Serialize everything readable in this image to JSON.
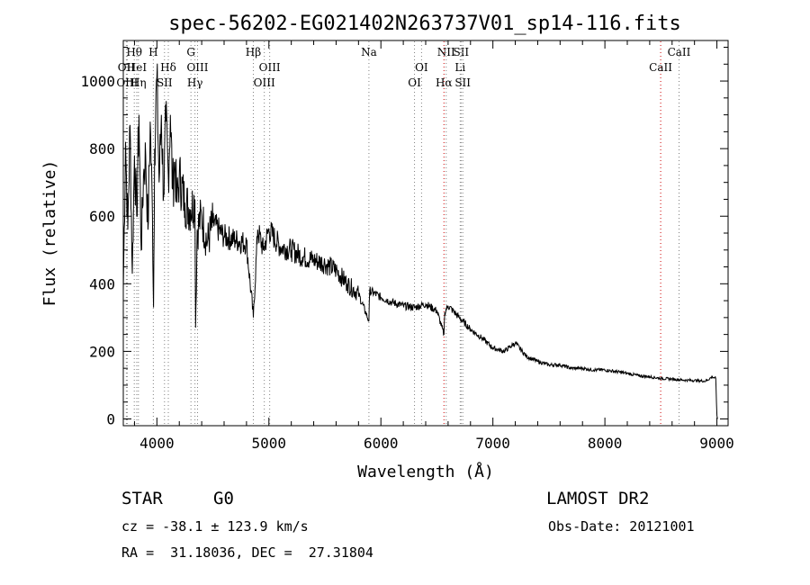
{
  "chart_data": {
    "type": "line",
    "title": "spec-56202-EG021402N263737V01_sp14-116.fits",
    "xlabel": "Wavelength (Å)",
    "ylabel": "Flux (relative)",
    "xlim": [
      3700,
      9100
    ],
    "ylim": [
      -20,
      1120
    ],
    "xticks": [
      4000,
      5000,
      6000,
      7000,
      8000,
      9000
    ],
    "yticks": [
      0,
      200,
      400,
      600,
      800,
      1000
    ],
    "grid": false,
    "series": [
      {
        "x": [
          3700,
          3720,
          3740,
          3760,
          3780,
          3800,
          3820,
          3840,
          3860,
          3880,
          3900,
          3920,
          3940,
          3960,
          3970,
          3980,
          4000,
          4020,
          4040,
          4060,
          4080,
          4102,
          4120,
          4140,
          4160,
          4180,
          4200,
          4250,
          4300,
          4340,
          4345,
          4360,
          4400,
          4450,
          4500,
          4600,
          4700,
          4800,
          4861,
          4900,
          4950,
          5000,
          5100,
          5200,
          5300,
          5400,
          5500,
          5600,
          5700,
          5800,
          5893,
          5900,
          6000,
          6100,
          6200,
          6300,
          6400,
          6500,
          6563,
          6570,
          6600,
          6700,
          6800,
          6900,
          7000,
          7100,
          7200,
          7300,
          7400,
          7500,
          7600,
          7700,
          7800,
          7900,
          8000,
          8100,
          8200,
          8300,
          8400,
          8500,
          8600,
          8700,
          8800,
          8900,
          8960,
          8990,
          9000,
          9005
        ],
        "y": [
          380,
          820,
          560,
          870,
          430,
          780,
          600,
          900,
          500,
          720,
          780,
          560,
          880,
          600,
          330,
          800,
          1010,
          700,
          900,
          660,
          880,
          720,
          900,
          680,
          760,
          640,
          720,
          640,
          620,
          650,
          270,
          560,
          600,
          520,
          580,
          540,
          530,
          520,
          300,
          560,
          500,
          560,
          510,
          500,
          480,
          470,
          460,
          440,
          400,
          370,
          290,
          380,
          360,
          345,
          335,
          330,
          340,
          320,
          250,
          315,
          335,
          300,
          265,
          240,
          210,
          200,
          225,
          185,
          170,
          160,
          160,
          150,
          150,
          145,
          145,
          140,
          135,
          128,
          125,
          120,
          118,
          115,
          114,
          112,
          125,
          120,
          10,
          0
        ]
      }
    ],
    "lines": [
      {
        "label": "Hθ",
        "x": 3798,
        "row": 1,
        "color": "#808080"
      },
      {
        "label": "OII",
        "x": 3727,
        "row": 2,
        "color": "#808080"
      },
      {
        "label": "OIII",
        "x": 3735,
        "row": 3,
        "color": "#808080"
      },
      {
        "label": "HeI",
        "x": 3820,
        "row": 2,
        "color": "#808080"
      },
      {
        "label": "Hη",
        "x": 3835,
        "row": 3,
        "color": "#808080"
      },
      {
        "label": "H",
        "x": 3968,
        "row": 1,
        "color": "#808080"
      },
      {
        "label": "Hδ",
        "x": 4102,
        "row": 2,
        "color": "#808080"
      },
      {
        "label": "SII",
        "x": 4068,
        "row": 3,
        "color": "#808080"
      },
      {
        "label": "G",
        "x": 4304,
        "row": 1,
        "color": "#808080"
      },
      {
        "label": "OIII",
        "x": 4363,
        "row": 2,
        "color": "#808080"
      },
      {
        "label": "Hγ",
        "x": 4340,
        "row": 3,
        "color": "#808080"
      },
      {
        "label": "Hβ",
        "x": 4861,
        "row": 1,
        "color": "#808080"
      },
      {
        "label": "OIII",
        "x": 5007,
        "row": 2,
        "color": "#808080"
      },
      {
        "label": "OIII",
        "x": 4959,
        "row": 3,
        "color": "#808080"
      },
      {
        "label": "Na",
        "x": 5893,
        "row": 1,
        "color": "#808080"
      },
      {
        "label": "OI",
        "x": 6363,
        "row": 2,
        "color": "#808080"
      },
      {
        "label": "OI",
        "x": 6300,
        "row": 3,
        "color": "#808080"
      },
      {
        "label": "NII",
        "x": 6583,
        "row": 1,
        "color": "#808080"
      },
      {
        "label": "Hα",
        "x": 6563,
        "row": 3,
        "color": "#cc0000"
      },
      {
        "label": "SII",
        "x": 6716,
        "row": 1,
        "color": "#808080"
      },
      {
        "label": "Li",
        "x": 6708,
        "row": 2,
        "color": "#808080"
      },
      {
        "label": "SII",
        "x": 6731,
        "row": 3,
        "color": "#808080"
      },
      {
        "label": "CaII",
        "x": 8662,
        "row": 1,
        "color": "#808080"
      },
      {
        "label": "CaII",
        "x": 8498,
        "row": 2,
        "color": "#cc0000"
      }
    ]
  },
  "info": {
    "object_class": "STAR",
    "subclass": "G0",
    "survey": "LAMOST DR2",
    "redshift": "cz = -38.1 ± 123.9 km/s",
    "obs_date": "Obs-Date: 20121001",
    "coords": "RA =  31.18036, DEC =  27.31804"
  }
}
